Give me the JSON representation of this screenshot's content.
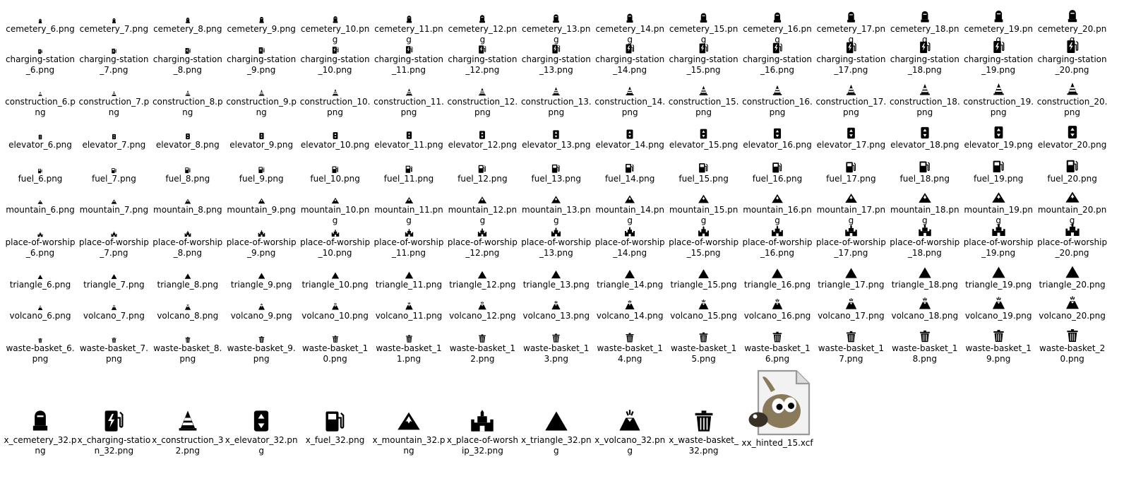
{
  "explorer": {
    "rows": [
      {
        "icon": "cemetery-icon",
        "files": [
          "cemetery_6.png",
          "cemetery_7.png",
          "cemetery_8.png",
          "cemetery_9.png",
          "cemetery_10.png",
          "cemetery_11.png",
          "cemetery_12.png",
          "cemetery_13.png",
          "cemetery_14.png",
          "cemetery_15.png",
          "cemetery_16.png",
          "cemetery_17.png",
          "cemetery_18.png",
          "cemetery_19.png",
          "cemetery_20.png"
        ]
      },
      {
        "icon": "charging-station-icon",
        "files": [
          "charging-station_6.png",
          "charging-station_7.png",
          "charging-station_8.png",
          "charging-station_9.png",
          "charging-station_10.png",
          "charging-station_11.png",
          "charging-station_12.png",
          "charging-station_13.png",
          "charging-station_14.png",
          "charging-station_15.png",
          "charging-station_16.png",
          "charging-station_17.png",
          "charging-station_18.png",
          "charging-station_19.png",
          "charging-station_20.png"
        ]
      },
      {
        "icon": "construction-icon",
        "files": [
          "construction_6.png",
          "construction_7.png",
          "construction_8.png",
          "construction_9.png",
          "construction_10.png",
          "construction_11.png",
          "construction_12.png",
          "construction_13.png",
          "construction_14.png",
          "construction_15.png",
          "construction_16.png",
          "construction_17.png",
          "construction_18.png",
          "construction_19.png",
          "construction_20.png"
        ]
      },
      {
        "icon": "elevator-icon",
        "files": [
          "elevator_6.png",
          "elevator_7.png",
          "elevator_8.png",
          "elevator_9.png",
          "elevator_10.png",
          "elevator_11.png",
          "elevator_12.png",
          "elevator_13.png",
          "elevator_14.png",
          "elevator_15.png",
          "elevator_16.png",
          "elevator_17.png",
          "elevator_18.png",
          "elevator_19.png",
          "elevator_20.png"
        ]
      },
      {
        "icon": "fuel-icon",
        "files": [
          "fuel_6.png",
          "fuel_7.png",
          "fuel_8.png",
          "fuel_9.png",
          "fuel_10.png",
          "fuel_11.png",
          "fuel_12.png",
          "fuel_13.png",
          "fuel_14.png",
          "fuel_15.png",
          "fuel_16.png",
          "fuel_17.png",
          "fuel_18.png",
          "fuel_19.png",
          "fuel_20.png"
        ]
      },
      {
        "icon": "mountain-icon",
        "files": [
          "mountain_6.png",
          "mountain_7.png",
          "mountain_8.png",
          "mountain_9.png",
          "mountain_10.png",
          "mountain_11.png",
          "mountain_12.png",
          "mountain_13.png",
          "mountain_14.png",
          "mountain_15.png",
          "mountain_16.png",
          "mountain_17.png",
          "mountain_18.png",
          "mountain_19.png",
          "mountain_20.png"
        ]
      },
      {
        "icon": "place-of-worship-icon",
        "files": [
          "place-of-worship_6.png",
          "place-of-worship_7.png",
          "place-of-worship_8.png",
          "place-of-worship_9.png",
          "place-of-worship_10.png",
          "place-of-worship_11.png",
          "place-of-worship_12.png",
          "place-of-worship_13.png",
          "place-of-worship_14.png",
          "place-of-worship_15.png",
          "place-of-worship_16.png",
          "place-of-worship_17.png",
          "place-of-worship_18.png",
          "place-of-worship_19.png",
          "place-of-worship_20.png"
        ]
      },
      {
        "icon": "triangle-icon",
        "files": [
          "triangle_6.png",
          "triangle_7.png",
          "triangle_8.png",
          "triangle_9.png",
          "triangle_10.png",
          "triangle_11.png",
          "triangle_12.png",
          "triangle_13.png",
          "triangle_14.png",
          "triangle_15.png",
          "triangle_16.png",
          "triangle_17.png",
          "triangle_18.png",
          "triangle_19.png",
          "triangle_20.png"
        ]
      },
      {
        "icon": "volcano-icon",
        "files": [
          "volcano_6.png",
          "volcano_7.png",
          "volcano_8.png",
          "volcano_9.png",
          "volcano_10.png",
          "volcano_11.png",
          "volcano_12.png",
          "volcano_13.png",
          "volcano_14.png",
          "volcano_15.png",
          "volcano_16.png",
          "volcano_17.png",
          "volcano_18.png",
          "volcano_19.png",
          "volcano_20.png"
        ]
      },
      {
        "icon": "waste-basket-icon",
        "files": [
          "waste-basket_6.png",
          "waste-basket_7.png",
          "waste-basket_8.png",
          "waste-basket_9.png",
          "waste-basket_10.png",
          "waste-basket_11.png",
          "waste-basket_12.png",
          "waste-basket_13.png",
          "waste-basket_14.png",
          "waste-basket_15.png",
          "waste-basket_16.png",
          "waste-basket_17.png",
          "waste-basket_18.png",
          "waste-basket_19.png",
          "waste-basket_20.png"
        ]
      }
    ],
    "large_row": [
      {
        "icon": "cemetery-icon",
        "file": "x_cemetery_32.png"
      },
      {
        "icon": "charging-station-icon",
        "file": "x_charging-station_32.png"
      },
      {
        "icon": "construction-icon",
        "file": "x_construction_32.png"
      },
      {
        "icon": "elevator-icon",
        "file": "x_elevator_32.png"
      },
      {
        "icon": "fuel-icon",
        "file": "x_fuel_32.png"
      },
      {
        "icon": "mountain-icon",
        "file": "x_mountain_32.png"
      },
      {
        "icon": "place-of-worship-icon",
        "file": "x_place-of-worship_32.png"
      },
      {
        "icon": "triangle-icon",
        "file": "x_triangle_32.png"
      },
      {
        "icon": "volcano-icon",
        "file": "x_volcano_32.png"
      },
      {
        "icon": "waste-basket-icon",
        "file": "x_waste-basket_32.png"
      },
      {
        "icon": "gimp-file-icon",
        "file": "xx_hinted_15.xcf"
      }
    ]
  }
}
